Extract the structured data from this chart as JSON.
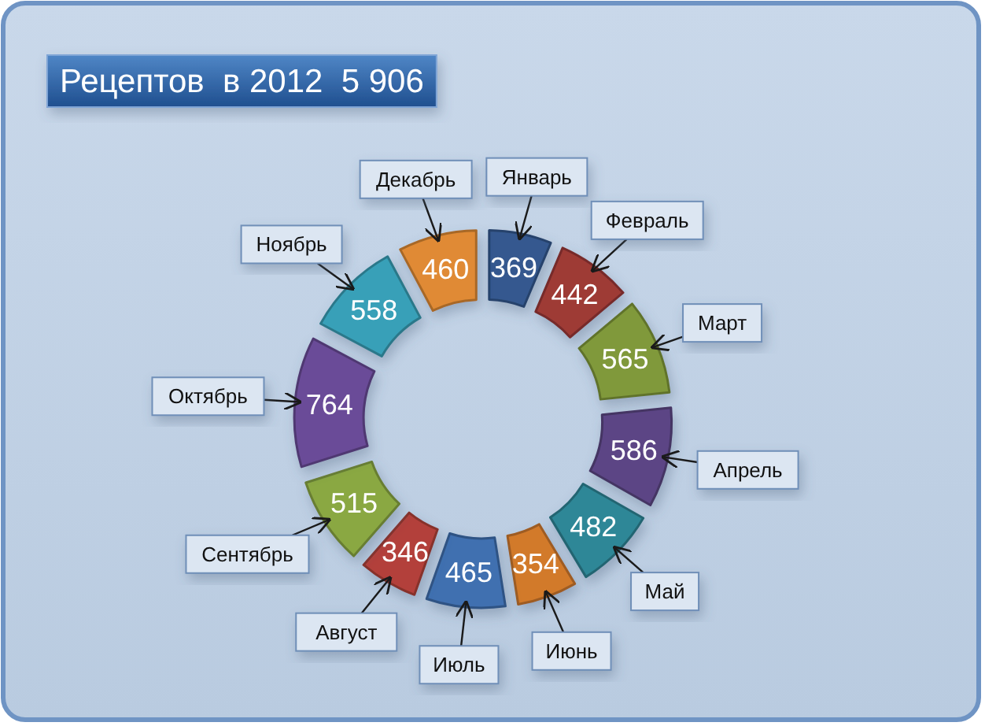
{
  "chart_data": {
    "type": "donut",
    "title": "Рецептов  в 2012  5 906",
    "categories": [
      "Январь",
      "Февраль",
      "Март",
      "Апрель",
      "Май",
      "Июнь",
      "Июль",
      "Август",
      "Сентябрь",
      "Октябрь",
      "Ноябрь",
      "Декабрь"
    ],
    "values": [
      369,
      442,
      565,
      586,
      482,
      354,
      465,
      346,
      515,
      764,
      558,
      460
    ],
    "colors": [
      "#34598f",
      "#9e3a36",
      "#80993a",
      "#5b4585",
      "#2f8797",
      "#d27a2c",
      "#3f6fb0",
      "#b3403a",
      "#8aa842",
      "#6a4b98",
      "#38a0b8",
      "#e08a34"
    ],
    "data_labels": true
  }
}
